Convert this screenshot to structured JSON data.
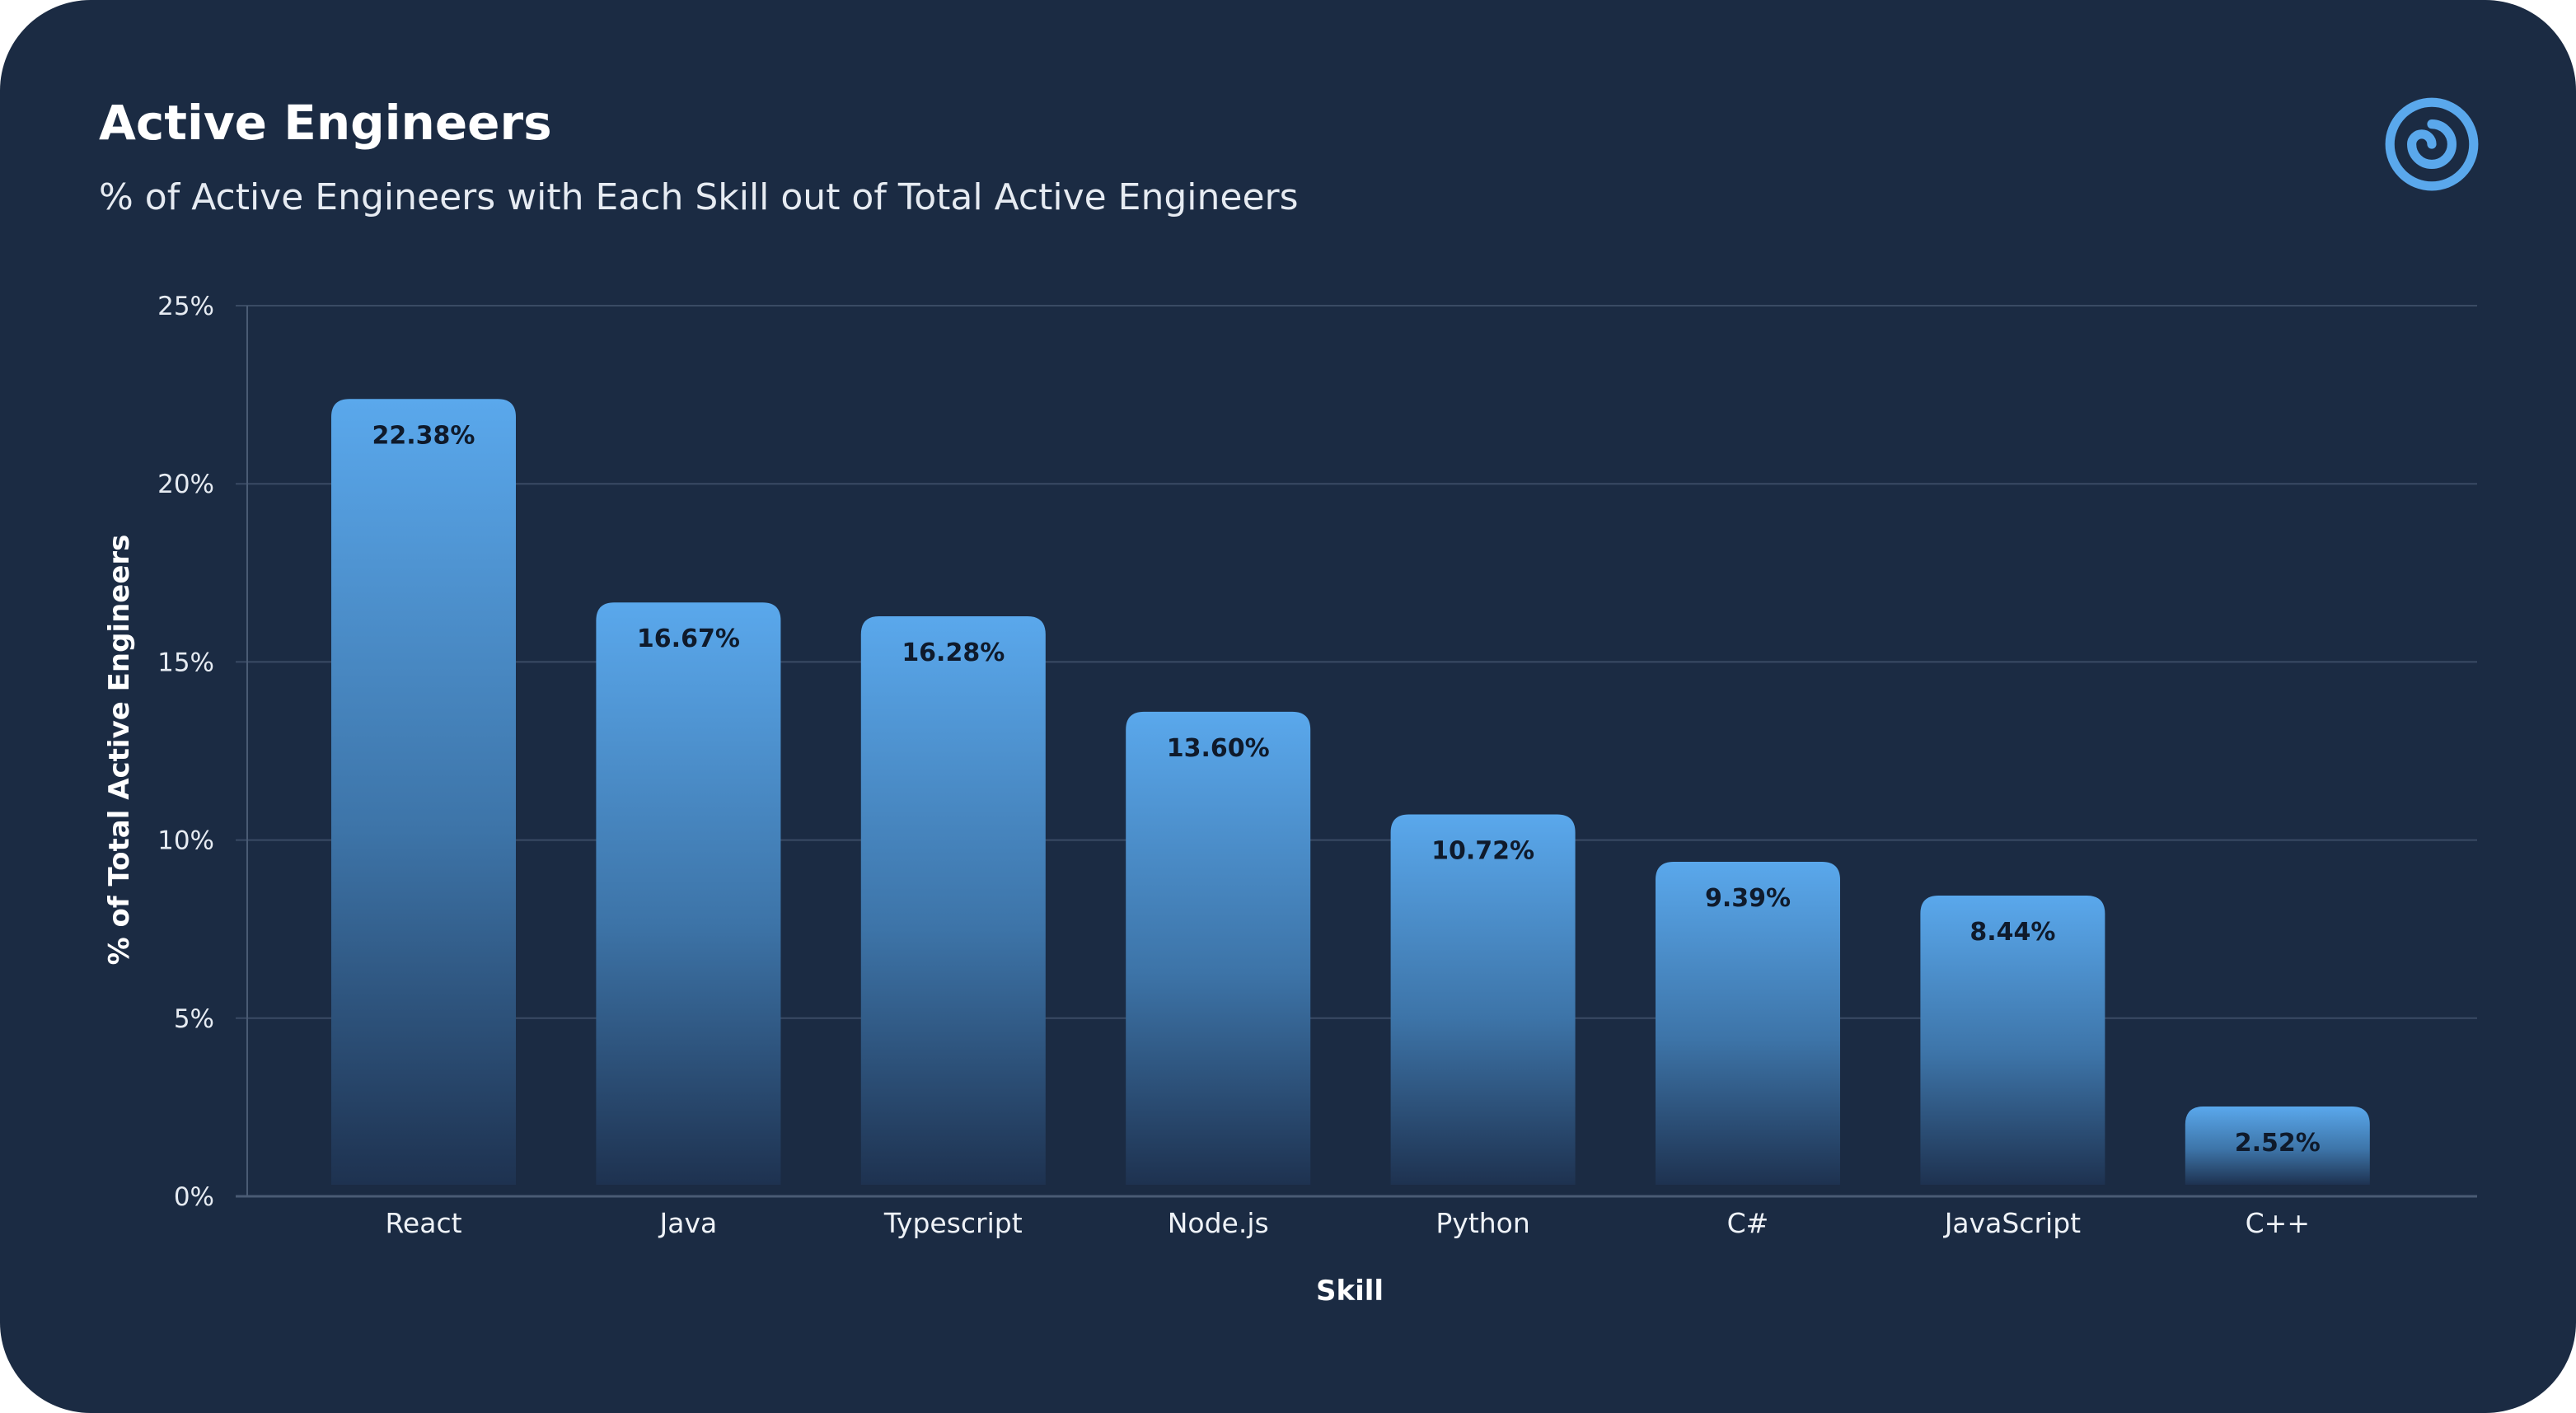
{
  "header": {
    "title": "Active Engineers",
    "subtitle": "% of Active Engineers with Each Skill out of Total Active Engineers"
  },
  "logo": {
    "icon": "swirl-logo-icon",
    "color": "#5aa8ec"
  },
  "colors": {
    "background": "#1b2b43",
    "bar_top": "#5aa8ec",
    "bar_bottom": "#1b2b43",
    "grid": "#3a4b64",
    "axis": "#4a5b74"
  },
  "chart_data": {
    "type": "bar",
    "xlabel": "Skill",
    "ylabel": "% of Total Active Engineers",
    "ylim": [
      0,
      25
    ],
    "yticks": [
      0,
      5,
      10,
      15,
      20,
      25
    ],
    "ytick_labels": [
      "0%",
      "5%",
      "10%",
      "15%",
      "20%",
      "25%"
    ],
    "grid": true,
    "categories": [
      "React",
      "Java",
      "Typescript",
      "Node.js",
      "Python",
      "C#",
      "JavaScript",
      "C++"
    ],
    "values": [
      22.38,
      16.67,
      16.28,
      13.6,
      10.72,
      9.39,
      8.44,
      2.52
    ],
    "value_labels": [
      "22.38%",
      "16.67%",
      "16.28%",
      "13.60%",
      "10.72%",
      "9.39%",
      "8.44%",
      "2.52%"
    ]
  }
}
